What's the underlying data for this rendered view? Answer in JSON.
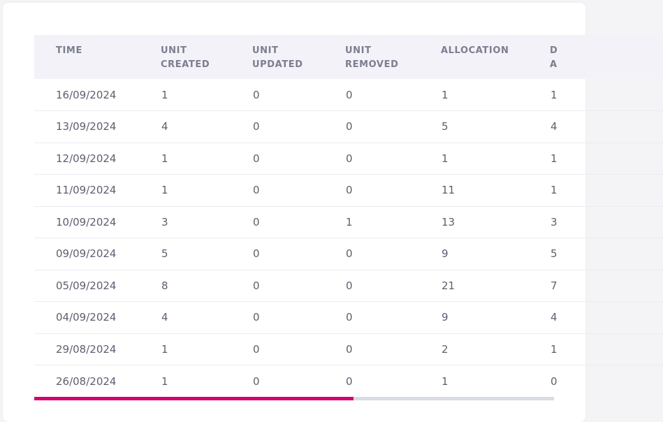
{
  "table": {
    "columns": [
      {
        "key": "time",
        "line1": "TIME",
        "line2": ""
      },
      {
        "key": "created",
        "line1": "UNIT",
        "line2": "CREATED"
      },
      {
        "key": "updated",
        "line1": "UNIT",
        "line2": "UPDATED"
      },
      {
        "key": "removed",
        "line1": "UNIT",
        "line2": "REMOVED"
      },
      {
        "key": "allocation",
        "line1": "ALLOCATION",
        "line2": ""
      },
      {
        "key": "d",
        "line1": "D",
        "line2": "A"
      }
    ],
    "rows": [
      {
        "time": "16/09/2024",
        "created": "1",
        "updated": "0",
        "removed": "0",
        "allocation": "1",
        "d": "1"
      },
      {
        "time": "13/09/2024",
        "created": "4",
        "updated": "0",
        "removed": "0",
        "allocation": "5",
        "d": "4"
      },
      {
        "time": "12/09/2024",
        "created": "1",
        "updated": "0",
        "removed": "0",
        "allocation": "1",
        "d": "1"
      },
      {
        "time": "11/09/2024",
        "created": "1",
        "updated": "0",
        "removed": "0",
        "allocation": "11",
        "d": "1"
      },
      {
        "time": "10/09/2024",
        "created": "3",
        "updated": "0",
        "removed": "1",
        "allocation": "13",
        "d": "3"
      },
      {
        "time": "09/09/2024",
        "created": "5",
        "updated": "0",
        "removed": "0",
        "allocation": "9",
        "d": "5"
      },
      {
        "time": "05/09/2024",
        "created": "8",
        "updated": "0",
        "removed": "0",
        "allocation": "21",
        "d": "7"
      },
      {
        "time": "04/09/2024",
        "created": "4",
        "updated": "0",
        "removed": "0",
        "allocation": "9",
        "d": "4"
      },
      {
        "time": "29/08/2024",
        "created": "1",
        "updated": "0",
        "removed": "0",
        "allocation": "2",
        "d": "1"
      },
      {
        "time": "26/08/2024",
        "created": "1",
        "updated": "0",
        "removed": "0",
        "allocation": "1",
        "d": "0"
      }
    ]
  },
  "scrollbar": {
    "position_fraction": 0.614,
    "thumb_color": "#d4006e",
    "track_color": "#d9dce3"
  }
}
